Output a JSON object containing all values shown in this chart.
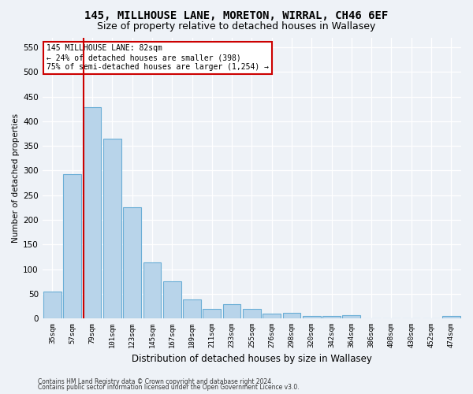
{
  "title": "145, MILLHOUSE LANE, MORETON, WIRRAL, CH46 6EF",
  "subtitle": "Size of property relative to detached houses in Wallasey",
  "xlabel": "Distribution of detached houses by size in Wallasey",
  "ylabel": "Number of detached properties",
  "categories": [
    "35sqm",
    "57sqm",
    "79sqm",
    "101sqm",
    "123sqm",
    "145sqm",
    "167sqm",
    "189sqm",
    "211sqm",
    "233sqm",
    "255sqm",
    "276sqm",
    "298sqm",
    "320sqm",
    "342sqm",
    "364sqm",
    "386sqm",
    "408sqm",
    "430sqm",
    "452sqm",
    "474sqm"
  ],
  "values": [
    55,
    293,
    428,
    365,
    225,
    113,
    76,
    39,
    20,
    29,
    19,
    10,
    11,
    5,
    5,
    6,
    0,
    0,
    0,
    0,
    5
  ],
  "bar_color": "#b8d4ea",
  "bar_edge_color": "#6aaed6",
  "vline_x_index": 2,
  "vline_color": "#cc0000",
  "annotation_text": "145 MILLHOUSE LANE: 82sqm\n← 24% of detached houses are smaller (398)\n75% of semi-detached houses are larger (1,254) →",
  "annotation_box_color": "#ffffff",
  "annotation_box_edge": "#cc0000",
  "ylim": [
    0,
    570
  ],
  "yticks": [
    0,
    50,
    100,
    150,
    200,
    250,
    300,
    350,
    400,
    450,
    500,
    550
  ],
  "bg_color": "#eef2f7",
  "grid_color": "#ffffff",
  "footer1": "Contains HM Land Registry data © Crown copyright and database right 2024.",
  "footer2": "Contains public sector information licensed under the Open Government Licence v3.0.",
  "title_fontsize": 10,
  "subtitle_fontsize": 9
}
